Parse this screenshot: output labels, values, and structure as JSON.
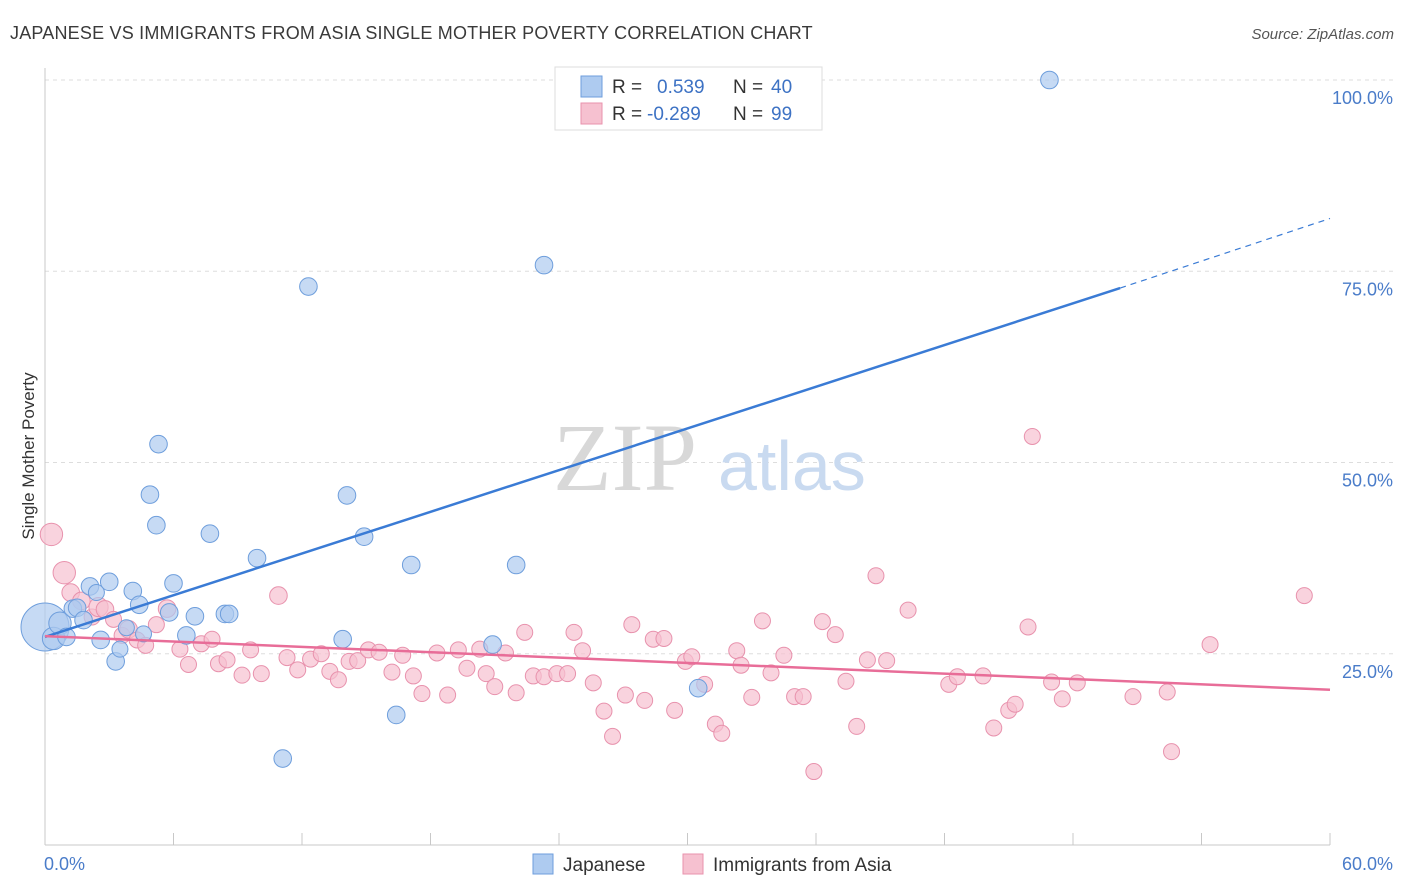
{
  "title": "JAPANESE VS IMMIGRANTS FROM ASIA SINGLE MOTHER POVERTY CORRELATION CHART",
  "source": "Source: ZipAtlas.com",
  "watermark": {
    "zip": "ZIP",
    "atlas": "atlas"
  },
  "legend_box": {
    "rows": [
      {
        "r_label": "R =",
        "r_value": "0.539",
        "n_label": "N =",
        "n_value": "40"
      },
      {
        "r_label": "R =",
        "r_value": "-0.289",
        "n_label": "N =",
        "n_value": "99"
      }
    ]
  },
  "bottom_legend": [
    "Japanese",
    "Immigrants from Asia"
  ],
  "colors": {
    "japanese_fill": "#aecbf0",
    "japanese_stroke": "#6e9edc",
    "japanese_line": "#3a7bd5",
    "asia_fill": "#f6c1d0",
    "asia_stroke": "#e892ad",
    "asia_line": "#e86d98",
    "tick_text": "#4a7cc9",
    "grid": "#dddddd"
  },
  "chart_data": {
    "type": "scatter",
    "title": "JAPANESE VS IMMIGRANTS FROM ASIA SINGLE MOTHER POVERTY CORRELATION CHART",
    "xlabel": "",
    "ylabel": "Single Mother Poverty",
    "xlim": [
      0,
      60
    ],
    "ylim": [
      0,
      100
    ],
    "x_tick_labels": [
      "0.0%",
      "60.0%"
    ],
    "y_ticks": [
      25,
      50,
      75,
      100
    ],
    "y_tick_labels": [
      "25.0%",
      "50.0%",
      "75.0%",
      "100.0%"
    ],
    "grid": true,
    "series": [
      {
        "name": "Japanese",
        "r": 0.539,
        "n": 40,
        "trend": {
          "x0": 0,
          "y0": 27.2,
          "x1": 50.2,
          "y1": 72.8,
          "x_dash_end": 60,
          "y_dash_end": 81.9
        },
        "points": [
          [
            0.0,
            28.5,
            3
          ],
          [
            0.4,
            27.0,
            1.4
          ],
          [
            0.7,
            29.0,
            1.4
          ],
          [
            1.0,
            27.2,
            1.1
          ],
          [
            1.3,
            30.9,
            1.1
          ],
          [
            1.5,
            31.0,
            1.1
          ],
          [
            1.8,
            29.4,
            1.1
          ],
          [
            2.1,
            33.8,
            1.1
          ],
          [
            2.4,
            33.0,
            1
          ],
          [
            2.6,
            26.8,
            1.1
          ],
          [
            3.0,
            34.4,
            1.1
          ],
          [
            3.3,
            24.0,
            1.1
          ],
          [
            3.5,
            25.6,
            1
          ],
          [
            3.8,
            28.4,
            1
          ],
          [
            4.1,
            33.2,
            1.1
          ],
          [
            4.4,
            31.4,
            1.1
          ],
          [
            4.6,
            27.6,
            1
          ],
          [
            5.2,
            41.8,
            1.1
          ],
          [
            5.3,
            52.4,
            1.1
          ],
          [
            5.8,
            30.4,
            1.1
          ],
          [
            6.0,
            34.2,
            1.1
          ],
          [
            6.6,
            27.4,
            1.1
          ],
          [
            7.0,
            29.9,
            1.1
          ],
          [
            7.7,
            40.7,
            1.1
          ],
          [
            8.4,
            30.2,
            1.1
          ],
          [
            8.6,
            30.2,
            1.1
          ],
          [
            9.9,
            37.5,
            1.1
          ],
          [
            11.1,
            11.3,
            1.1
          ],
          [
            12.3,
            73.0,
            1.1
          ],
          [
            13.9,
            26.9,
            1.1
          ],
          [
            14.1,
            45.7,
            1.1
          ],
          [
            14.9,
            40.3,
            1.1
          ],
          [
            16.4,
            17.0,
            1.1
          ],
          [
            17.1,
            36.6,
            1.1
          ],
          [
            20.9,
            26.2,
            1.1
          ],
          [
            22.0,
            36.6,
            1.1
          ],
          [
            23.3,
            75.8,
            1.1
          ],
          [
            30.5,
            20.5,
            1.1
          ],
          [
            46.9,
            100.0,
            1.1
          ],
          [
            4.9,
            45.8,
            1.1
          ]
        ]
      },
      {
        "name": "Immigrants from Asia",
        "r": -0.289,
        "n": 99,
        "trend": {
          "x0": 0,
          "y0": 27.3,
          "x1": 60,
          "y1": 20.3
        },
        "points": [
          [
            0.3,
            40.6,
            1.4
          ],
          [
            0.9,
            35.6,
            1.4
          ],
          [
            1.2,
            33.0,
            1.1
          ],
          [
            1.7,
            31.9,
            1.1
          ],
          [
            2.2,
            29.8,
            1
          ],
          [
            2.5,
            31.1,
            1.2
          ],
          [
            2.8,
            30.8,
            1.1
          ],
          [
            3.2,
            29.5,
            1
          ],
          [
            3.6,
            27.4,
            1
          ],
          [
            3.9,
            28.2,
            1.1
          ],
          [
            4.3,
            26.8,
            1
          ],
          [
            4.7,
            26.1,
            1
          ],
          [
            5.2,
            28.8,
            1
          ],
          [
            5.7,
            30.9,
            1.1
          ],
          [
            6.3,
            25.6,
            1
          ],
          [
            6.7,
            23.6,
            1
          ],
          [
            7.3,
            26.3,
            1
          ],
          [
            7.8,
            26.9,
            1
          ],
          [
            8.1,
            23.7,
            1
          ],
          [
            8.5,
            24.2,
            1
          ],
          [
            9.2,
            22.2,
            1
          ],
          [
            9.6,
            25.5,
            1
          ],
          [
            10.1,
            22.4,
            1
          ],
          [
            10.9,
            32.6,
            1.1
          ],
          [
            11.3,
            24.5,
            1
          ],
          [
            11.8,
            22.9,
            1
          ],
          [
            12.4,
            24.3,
            1
          ],
          [
            12.9,
            25.0,
            1
          ],
          [
            13.3,
            22.7,
            1
          ],
          [
            13.7,
            21.6,
            1
          ],
          [
            14.2,
            24.0,
            1
          ],
          [
            14.6,
            24.1,
            1
          ],
          [
            15.1,
            25.5,
            1
          ],
          [
            15.6,
            25.2,
            1
          ],
          [
            16.2,
            22.6,
            1
          ],
          [
            16.7,
            24.8,
            1
          ],
          [
            17.2,
            22.1,
            1
          ],
          [
            17.6,
            19.8,
            1
          ],
          [
            18.3,
            25.1,
            1
          ],
          [
            18.8,
            19.6,
            1
          ],
          [
            19.3,
            25.5,
            1
          ],
          [
            19.7,
            23.1,
            1
          ],
          [
            20.3,
            25.6,
            1
          ],
          [
            20.6,
            22.4,
            1
          ],
          [
            21.0,
            20.7,
            1
          ],
          [
            21.5,
            25.1,
            1
          ],
          [
            22.0,
            19.9,
            1
          ],
          [
            22.4,
            27.8,
            1
          ],
          [
            22.8,
            22.1,
            1
          ],
          [
            23.3,
            22.0,
            1
          ],
          [
            23.9,
            22.4,
            1
          ],
          [
            24.4,
            22.4,
            1
          ],
          [
            24.7,
            27.8,
            1
          ],
          [
            25.1,
            25.4,
            1
          ],
          [
            25.6,
            21.2,
            1
          ],
          [
            26.1,
            17.5,
            1
          ],
          [
            26.5,
            14.2,
            1
          ],
          [
            27.1,
            19.6,
            1
          ],
          [
            27.4,
            28.8,
            1
          ],
          [
            28.0,
            18.9,
            1
          ],
          [
            28.4,
            26.9,
            1
          ],
          [
            28.9,
            27.0,
            1
          ],
          [
            29.4,
            17.6,
            1
          ],
          [
            29.9,
            24.0,
            1
          ],
          [
            30.2,
            24.6,
            1
          ],
          [
            30.8,
            21.0,
            1
          ],
          [
            31.3,
            15.8,
            1
          ],
          [
            31.6,
            14.6,
            1
          ],
          [
            32.3,
            25.4,
            1
          ],
          [
            32.5,
            23.5,
            1
          ],
          [
            33.0,
            19.3,
            1
          ],
          [
            33.5,
            29.3,
            1
          ],
          [
            33.9,
            22.5,
            1
          ],
          [
            34.5,
            24.8,
            1
          ],
          [
            35.0,
            19.4,
            1
          ],
          [
            35.4,
            19.4,
            1
          ],
          [
            35.9,
            9.6,
            1
          ],
          [
            36.3,
            29.2,
            1
          ],
          [
            36.9,
            27.5,
            1
          ],
          [
            37.4,
            21.4,
            1
          ],
          [
            37.9,
            15.5,
            1
          ],
          [
            38.4,
            24.2,
            1
          ],
          [
            38.8,
            35.2,
            1
          ],
          [
            39.3,
            24.1,
            1
          ],
          [
            40.3,
            30.7,
            1
          ],
          [
            42.2,
            21.0,
            1
          ],
          [
            42.6,
            22.0,
            1
          ],
          [
            43.8,
            22.1,
            1
          ],
          [
            44.3,
            15.3,
            1
          ],
          [
            45.0,
            17.6,
            1
          ],
          [
            45.3,
            18.4,
            1
          ],
          [
            45.9,
            28.5,
            1
          ],
          [
            46.1,
            53.4,
            1
          ],
          [
            47.0,
            21.3,
            1
          ],
          [
            47.5,
            19.1,
            1
          ],
          [
            48.2,
            21.2,
            1
          ],
          [
            50.8,
            19.4,
            1
          ],
          [
            52.4,
            20.0,
            1
          ],
          [
            52.6,
            12.2,
            1
          ],
          [
            54.4,
            26.2,
            1
          ],
          [
            58.8,
            32.6,
            1
          ]
        ]
      }
    ]
  }
}
